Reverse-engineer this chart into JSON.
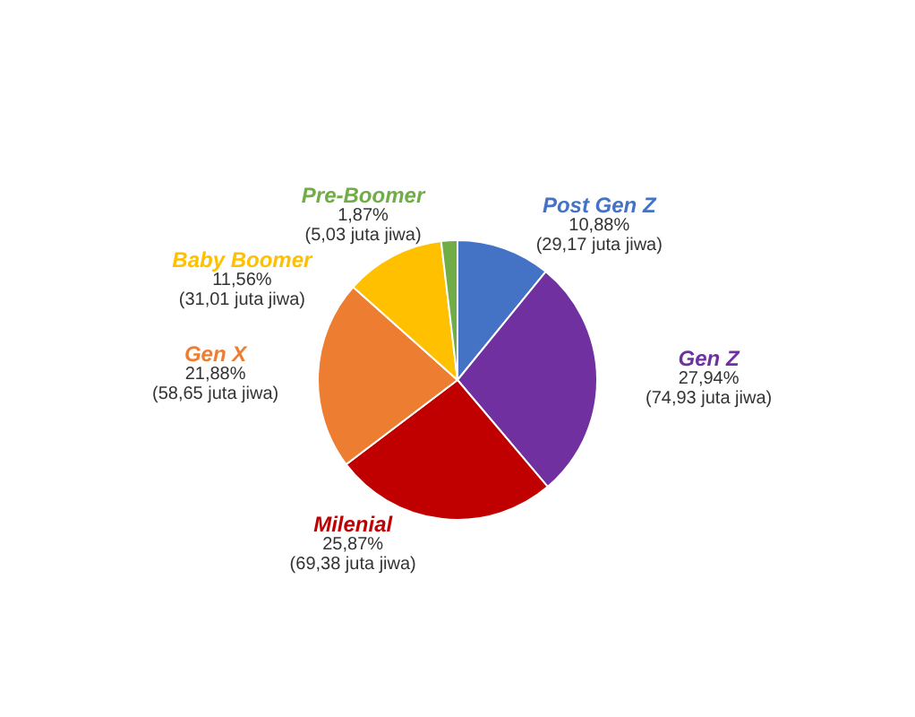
{
  "chart_data": {
    "type": "pie",
    "categories": [
      "Post Gen Z",
      "Gen Z",
      "Milenial",
      "Gen X",
      "Baby Boomer",
      "Pre-Boomer"
    ],
    "values": [
      10.88,
      27.94,
      25.87,
      21.88,
      11.56,
      1.87
    ],
    "colors": [
      "#4472c4",
      "#7030a0",
      "#c00000",
      "#ed7d31",
      "#ffc000",
      "#70ad47"
    ],
    "value_labels": [
      "10,88%\n(29,17 juta jiwa)",
      "27,94%\n(74,93 juta jiwa)",
      "25,87%\n(69,38 juta jiwa)",
      "21,88%\n(58,65 juta jiwa)",
      "11,56%\n(31,01 juta jiwa)",
      "1,87%\n(5,03 juta jiwa)"
    ],
    "legend": false
  }
}
